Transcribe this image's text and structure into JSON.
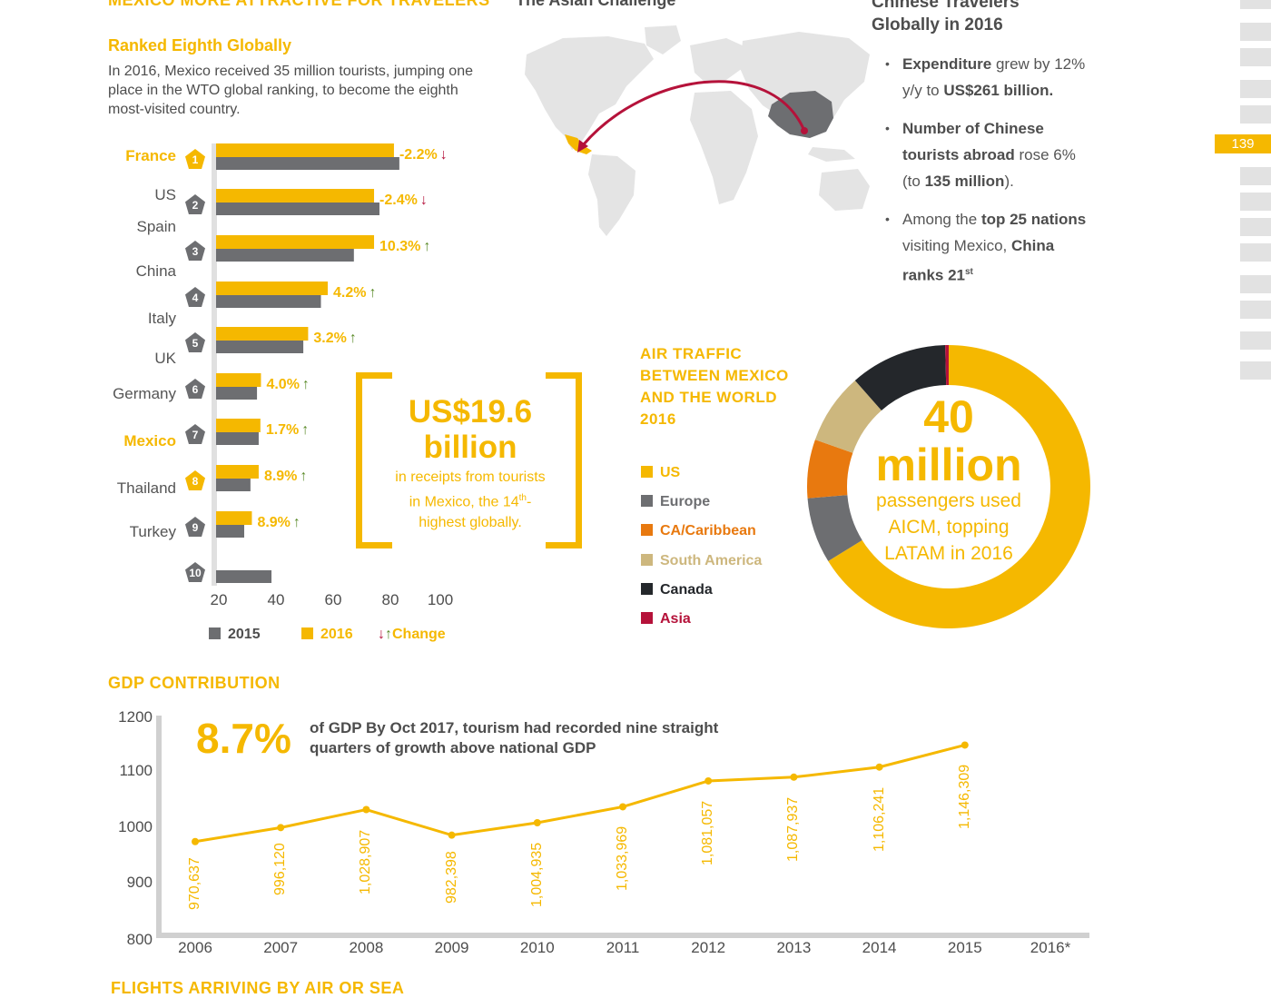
{
  "headers": {
    "mexico": "MEXICO MORE ATTRACTIVE FOR TRAVELERS",
    "asian": "The Asian Challenge",
    "chinese_line1": "Chinese Travelers",
    "chinese_line2": "Globally in 2016",
    "gdp": "GDP CONTRIBUTION",
    "flights": "FLIGHTS ARRIVING BY AIR OR SEA"
  },
  "ranking": {
    "subtitle": "Ranked Eighth Globally",
    "intro": "In 2016, Mexico received 35 million tourists, jumping one place in the WTO global ranking, to become the eighth most-visited country."
  },
  "page_number": "139",
  "colors": {
    "yellow": "#f5b800",
    "gray": "#6d6e71",
    "orange": "#e8790f",
    "tan": "#cdb77e",
    "black": "#24272b",
    "red": "#b5123a",
    "up": "#5a8a28"
  },
  "chart_data": [
    {
      "type": "bar",
      "orientation": "horizontal",
      "categories": [
        "France",
        "US",
        "Spain",
        "China",
        "Italy",
        "UK",
        "Germany",
        "Mexico",
        "Thailand",
        "Turkey"
      ],
      "ranks": [
        "1",
        "2",
        "3",
        "4",
        "5",
        "6",
        "7",
        "8",
        "9",
        "10"
      ],
      "highlighted": [
        "France",
        "Mexico"
      ],
      "series": [
        {
          "name": "2015",
          "color": "#6d6e71",
          "values": [
            84.5,
            77.5,
            68.5,
            56.9,
            50.7,
            34.4,
            35.0,
            32.1,
            29.9,
            39.5
          ]
        },
        {
          "name": "2016",
          "color": "#f5b800",
          "values": [
            82.6,
            75.6,
            75.6,
            59.3,
            52.4,
            35.8,
            35.6,
            35.0,
            32.6,
            null
          ]
        }
      ],
      "change_labels": [
        "-2.2%",
        "-2.4%",
        "10.3%",
        "4.2%",
        "3.2%",
        "4.0%",
        "1.7%",
        "8.9%",
        "8.9%",
        ""
      ],
      "change_direction": [
        "down",
        "down",
        "up",
        "up",
        "up",
        "up",
        "up",
        "up",
        "up",
        ""
      ],
      "xticks": [
        "20",
        "40",
        "60",
        "80",
        "100"
      ],
      "xlim": [
        20,
        100
      ],
      "legend": [
        "2015",
        "2016",
        "Change"
      ]
    },
    {
      "type": "pie",
      "title": "AIR TRAFFIC BETWEEN MEXICO AND THE WORLD 2016",
      "labels": [
        "US",
        "Europe",
        "CA/Caribbean",
        "South America",
        "Canada",
        "Asia"
      ],
      "colors": [
        "#f5b800",
        "#6d6e71",
        "#e8790f",
        "#cdb77e",
        "#24272b",
        "#b5123a"
      ],
      "values": [
        66.2,
        7.5,
        6.7,
        8.1,
        11.1,
        0.4
      ],
      "center": {
        "big": "40",
        "big2": "million",
        "sub1": "passengers used",
        "sub2": "AICM, topping",
        "sub3": "LATAM in 2016"
      }
    },
    {
      "type": "line",
      "title": "GDP CONTRIBUTION",
      "x": [
        "2006",
        "2007",
        "2008",
        "2009",
        "2010",
        "2011",
        "2012",
        "2013",
        "2014",
        "2015",
        "2016*"
      ],
      "values": [
        970.637,
        996.12,
        1028.907,
        982.398,
        1004.935,
        1033.969,
        1081.057,
        1087.937,
        1106.241,
        1146.309,
        null
      ],
      "value_labels": [
        "970,637",
        "996,120",
        "1,028,907",
        "982,398",
        "1,004,935",
        "1,033,969",
        "1,081,057",
        "1,087,937",
        "1,106,241",
        "1,146,309",
        ""
      ],
      "yticks": [
        "1200",
        "1100",
        "1000",
        "900",
        "800"
      ],
      "ylim": [
        800,
        1200
      ],
      "annotation_big": "8.7%",
      "annotation_text": "of GDP By Oct 2017, tourism had recorded nine straight quarters of growth above national GDP"
    }
  ],
  "receipts": {
    "line1": "US$19.6",
    "line2": "billion",
    "sub1": "in receipts from tourists",
    "sub2_pre": "in Mexico, the 14",
    "sub2_sup": "th",
    "sub2_post": "-",
    "sub3": "highest globally."
  },
  "chinese_bullets": {
    "b1_bold1": "Expenditure",
    "b1_text": " grew by 12% y/y to ",
    "b1_bold2": "US$261 billion.",
    "b2_bold1": "Number of Chinese tourists abroad",
    "b2_text": " rose 6% (to ",
    "b2_bold2": "135 million",
    "b2_end": ").",
    "b3_text1": "Among the ",
    "b3_bold1": "top 25 nations",
    "b3_text2": " visiting Mexico, ",
    "b3_bold2": "China ranks 21",
    "b3_sup": "st"
  }
}
